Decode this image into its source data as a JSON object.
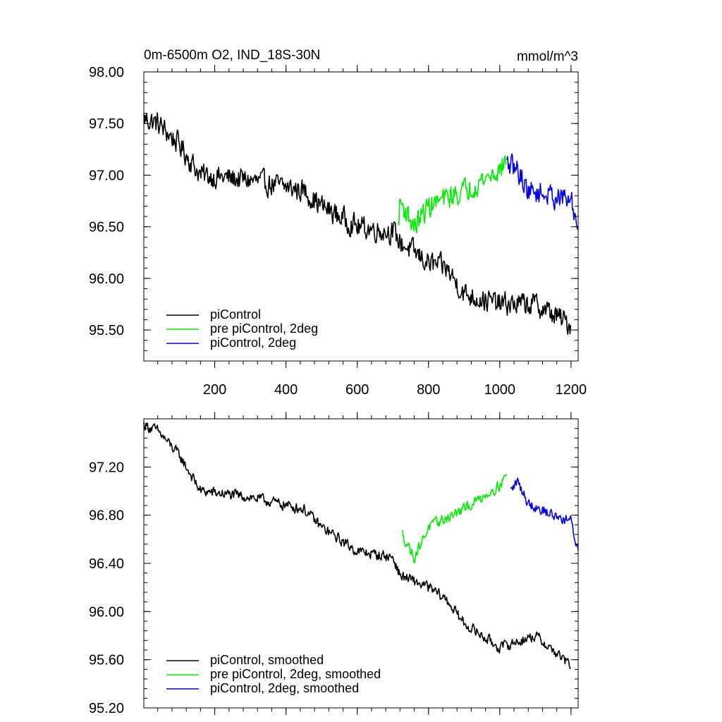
{
  "colors": {
    "piControl": "#000000",
    "pre_piControl_2deg": "#00ee00",
    "piControl_2deg": "#0000ee"
  },
  "chart_data": [
    {
      "type": "line",
      "title": "0m-6500m O2, IND_18S-30N",
      "units": "mmol/m^3",
      "xlim": [
        1,
        1220
      ],
      "ylim": [
        95.2,
        98.0
      ],
      "x_ticks": [
        200,
        400,
        600,
        800,
        1000,
        1200
      ],
      "x_tick_labels": [
        "200",
        "400",
        "600",
        "800",
        "1000",
        "1200"
      ],
      "y_ticks": [
        95.5,
        96.0,
        96.5,
        97.0,
        97.5,
        98.0
      ],
      "y_tick_labels": [
        "95.50",
        "96.00",
        "96.50",
        "97.00",
        "97.50",
        "98.00"
      ],
      "legend_placement": "bottom-left",
      "noise": 0.1,
      "series": [
        {
          "name": "piControl",
          "color": "#000000",
          "points": [
            [
              1,
              97.55
            ],
            [
              40,
              97.5
            ],
            [
              100,
              97.3
            ],
            [
              160,
              97.0
            ],
            [
              300,
              96.95
            ],
            [
              450,
              96.85
            ],
            [
              500,
              96.7
            ],
            [
              600,
              96.5
            ],
            [
              700,
              96.45
            ],
            [
              720,
              96.35
            ],
            [
              800,
              96.15
            ],
            [
              850,
              96.1
            ],
            [
              900,
              95.85
            ],
            [
              1000,
              95.75
            ],
            [
              1100,
              95.75
            ],
            [
              1200,
              95.55
            ]
          ]
        },
        {
          "name": "pre piControl, 2deg",
          "color": "#00ee00",
          "points": [
            [
              715,
              96.5
            ],
            [
              720,
              96.75
            ],
            [
              760,
              96.5
            ],
            [
              800,
              96.7
            ],
            [
              900,
              96.85
            ],
            [
              1000,
              97.05
            ],
            [
              1020,
              97.15
            ]
          ]
        },
        {
          "name": "piControl, 2deg",
          "color": "#0000ee",
          "points": [
            [
              1020,
              97.1
            ],
            [
              1050,
              97.05
            ],
            [
              1080,
              96.85
            ],
            [
              1150,
              96.8
            ],
            [
              1200,
              96.75
            ],
            [
              1220,
              96.5
            ]
          ]
        }
      ]
    },
    {
      "type": "line",
      "title": "",
      "units": "",
      "xlim": [
        1,
        1220
      ],
      "ylim": [
        95.2,
        97.6
      ],
      "x_ticks": [
        200,
        400,
        600,
        800,
        1000,
        1200
      ],
      "y_ticks": [
        95.2,
        95.6,
        96.0,
        96.4,
        96.8,
        97.2
      ],
      "y_tick_labels": [
        "95.20",
        "95.60",
        "96.00",
        "96.40",
        "96.80",
        "97.20"
      ],
      "legend_placement": "bottom-left",
      "noise": 0.04,
      "series": [
        {
          "name": "piControl, smoothed",
          "color": "#000000",
          "points": [
            [
              1,
              97.55
            ],
            [
              40,
              97.5
            ],
            [
              100,
              97.3
            ],
            [
              160,
              97.0
            ],
            [
              300,
              96.95
            ],
            [
              450,
              96.85
            ],
            [
              500,
              96.7
            ],
            [
              600,
              96.5
            ],
            [
              700,
              96.45
            ],
            [
              720,
              96.3
            ],
            [
              800,
              96.2
            ],
            [
              850,
              96.1
            ],
            [
              900,
              95.9
            ],
            [
              1000,
              95.7
            ],
            [
              1100,
              95.8
            ],
            [
              1200,
              95.55
            ]
          ]
        },
        {
          "name": "pre piControl, 2deg, smoothed",
          "color": "#00ee00",
          "points": [
            [
              725,
              96.65
            ],
            [
              760,
              96.45
            ],
            [
              800,
              96.7
            ],
            [
              900,
              96.85
            ],
            [
              1000,
              97.05
            ],
            [
              1020,
              97.15
            ]
          ]
        },
        {
          "name": "piControl, 2deg, smoothed",
          "color": "#0000ee",
          "points": [
            [
              1030,
              97.0
            ],
            [
              1050,
              97.08
            ],
            [
              1080,
              96.9
            ],
            [
              1150,
              96.8
            ],
            [
              1200,
              96.75
            ],
            [
              1220,
              96.5
            ]
          ]
        }
      ]
    }
  ]
}
